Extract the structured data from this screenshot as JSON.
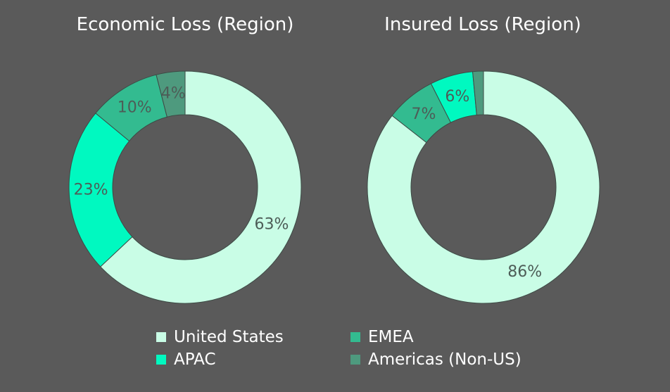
{
  "colors": {
    "background": "#5a5a5a",
    "united_states": "#c9fde6",
    "apac": "#00f9c0",
    "emea": "#33bb90",
    "americas_non_us": "#4e9a7e",
    "slice_label": "#4d5d57",
    "slice_border": "#3d4a45"
  },
  "chart_data": [
    {
      "type": "donut",
      "title": "Economic Loss (Region)",
      "series": [
        {
          "name": "United States",
          "value": 63,
          "label": "63%",
          "color_key": "united_states"
        },
        {
          "name": "APAC",
          "value": 23,
          "label": "23%",
          "color_key": "apac"
        },
        {
          "name": "EMEA",
          "value": 10,
          "label": "10%",
          "color_key": "emea"
        },
        {
          "name": "Americas (Non-US)",
          "value": 4,
          "label": "4%",
          "color_key": "americas_non_us"
        }
      ]
    },
    {
      "type": "donut",
      "title": "Insured Loss (Region)",
      "series": [
        {
          "name": "United States",
          "value": 86,
          "label": "86%",
          "color_key": "united_states"
        },
        {
          "name": "EMEA",
          "value": 7,
          "label": "7%",
          "color_key": "emea"
        },
        {
          "name": "APAC",
          "value": 6,
          "label": "6%",
          "color_key": "apac"
        },
        {
          "name": "Americas (Non-US)",
          "value": 1.5,
          "label": "",
          "color_key": "americas_non_us"
        }
      ]
    }
  ],
  "legend": {
    "placement": "bottom",
    "items": [
      {
        "name": "United States",
        "color_key": "united_states"
      },
      {
        "name": "EMEA",
        "color_key": "emea"
      },
      {
        "name": "APAC",
        "color_key": "apac"
      },
      {
        "name": "Americas (Non-US)",
        "color_key": "americas_non_us"
      }
    ]
  }
}
